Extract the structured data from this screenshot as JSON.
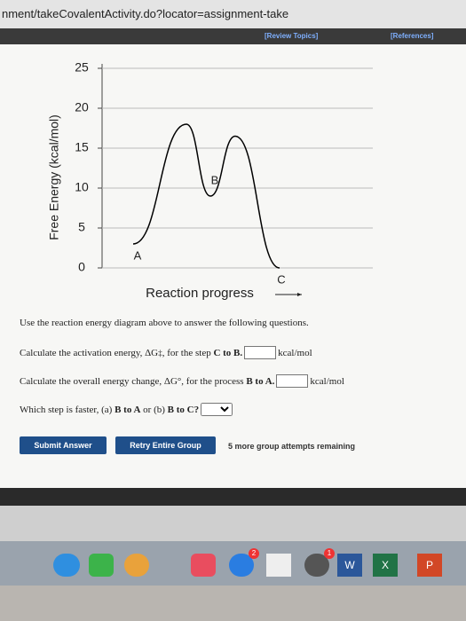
{
  "browser": {
    "url": "nment/takeCovalentActivity.do?locator=assignment-take"
  },
  "toolbar": {
    "review": "[Review Topics]",
    "references": "[References]"
  },
  "chart_data": {
    "type": "line",
    "y_label": "Free Energy (kcal/mol)",
    "x_label": "Reaction progress",
    "categories": [
      "A",
      null,
      "B",
      null,
      "C"
    ],
    "values": [
      3,
      18,
      9,
      16.5,
      0
    ],
    "color": "#000000",
    "ylim": [
      0,
      25
    ],
    "yticks": [
      0,
      5,
      10,
      15,
      20,
      25
    ],
    "grid": true
  },
  "intro": "Use the reaction energy diagram above to answer the following questions.",
  "questions": [
    {
      "segments": [
        {
          "text": "Calculate the activation energy, ΔG",
          "style": "normal"
        },
        {
          "text": "‡",
          "style": "sup"
        },
        {
          "text": ", for the step ",
          "style": "normal"
        },
        {
          "text": "C to B.",
          "style": "bold"
        }
      ],
      "unit": "kcal/mol",
      "control": "input"
    },
    {
      "segments": [
        {
          "text": "Calculate the overall energy change, ΔG°, for the process ",
          "style": "normal"
        },
        {
          "text": "B to A.",
          "style": "bold"
        }
      ],
      "unit": "kcal/mol",
      "control": "input"
    },
    {
      "segments": [
        {
          "text": "Which step is faster, (a) ",
          "style": "normal"
        },
        {
          "text": "B to A",
          "style": "bold"
        },
        {
          "text": " or (b) ",
          "style": "normal"
        },
        {
          "text": "B to C?",
          "style": "bold"
        }
      ],
      "control": "select"
    }
  ],
  "buttons": {
    "submit": "Submit Answer",
    "retry": "Retry Entire Group",
    "attempts": "5 more group attempts remaining"
  },
  "dock": {
    "badge_music": "2",
    "badge_cal": "1",
    "word": "W",
    "excel": "X",
    "ppt": "P"
  }
}
